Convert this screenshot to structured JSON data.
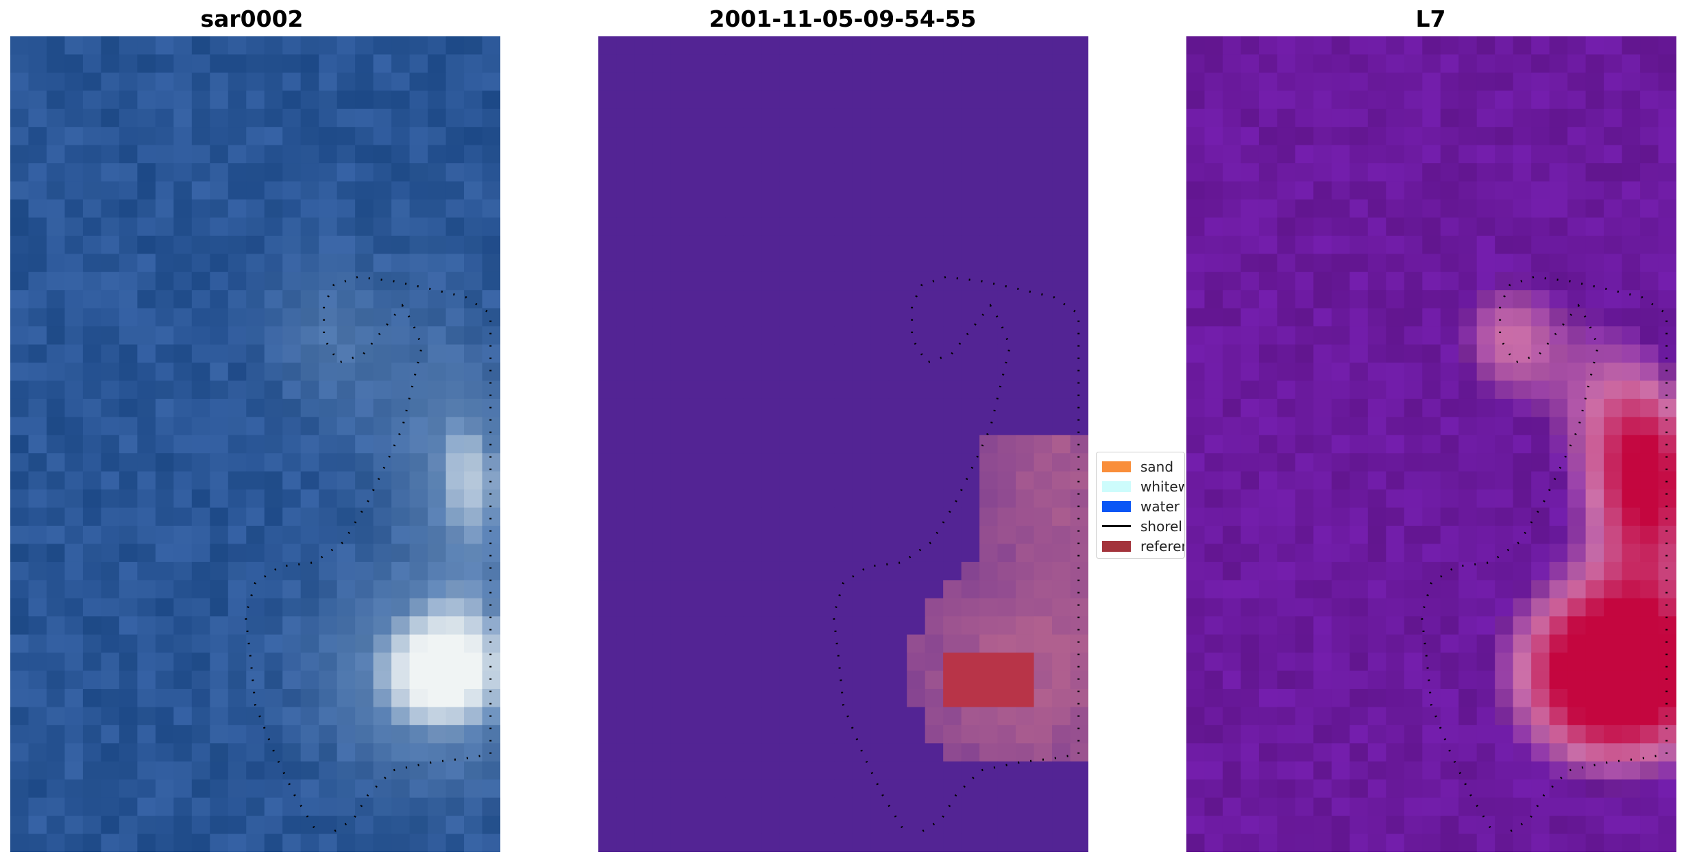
{
  "panels": [
    {
      "title": "sar0002",
      "kind": "rgb",
      "base": "#2a5696"
    },
    {
      "title": "2001-11-05-09-54-55",
      "kind": "classification",
      "base": "#532494"
    },
    {
      "title": "L7",
      "kind": "index",
      "base": "#6b1a9e"
    }
  ],
  "legend": {
    "items": [
      {
        "label": "sand",
        "color": "#f98e3a",
        "icon": "patch"
      },
      {
        "label": "whitew",
        "color": "#cdfcfc",
        "icon": "patch"
      },
      {
        "label": "water",
        "color": "#0a56f5",
        "icon": "patch"
      },
      {
        "label": "shorel",
        "color": "#000000",
        "icon": "line"
      },
      {
        "label": "referer",
        "color": "#a3333b",
        "icon": "patch"
      }
    ]
  },
  "colors": {
    "rgb_water": "#2a5696",
    "rgb_white": "#f0f4f4",
    "class_base": "#532494",
    "class_reference": "#b83448",
    "class_patch": "#b0608f",
    "index_base": "#6b1a9e",
    "index_high": "#c4063f",
    "index_edge": "#cc6fa8",
    "shoreline": "#000000"
  }
}
